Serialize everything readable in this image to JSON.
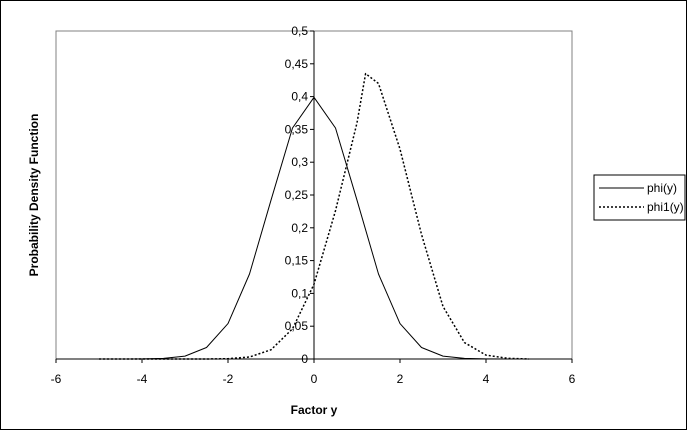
{
  "chart_data": {
    "type": "line",
    "title": "",
    "xlabel": "Factor y",
    "ylabel": "Probability Density Function",
    "xlim": [
      -6,
      6
    ],
    "ylim": [
      0,
      0.5
    ],
    "x_ticks": [
      "-6",
      "-4",
      "-2",
      "0",
      "2",
      "4",
      "6"
    ],
    "y_ticks": [
      "0",
      "0,05",
      "0,1",
      "0,15",
      "0,2",
      "0,25",
      "0,3",
      "0,35",
      "0,4",
      "0,45",
      "0,5"
    ],
    "grid": false,
    "legend_position": "right",
    "series": [
      {
        "name": "phi(y)",
        "style": "solid",
        "color": "#000000",
        "x": [
          -5.0,
          -4.5,
          -4.0,
          -3.5,
          -3.0,
          -2.5,
          -2.0,
          -1.5,
          -1.0,
          -0.5,
          0.0,
          0.5,
          1.0,
          1.5,
          2.0,
          2.5,
          3.0,
          3.5,
          4.0,
          4.5,
          5.0
        ],
        "y": [
          0.0,
          0.0,
          0.0001,
          0.0009,
          0.0044,
          0.0175,
          0.054,
          0.1295,
          0.242,
          0.3521,
          0.3989,
          0.3521,
          0.242,
          0.1295,
          0.054,
          0.0175,
          0.0044,
          0.0009,
          0.0001,
          0.0,
          0.0
        ]
      },
      {
        "name": "phi1(y)",
        "style": "dotted",
        "color": "#000000",
        "x": [
          -5.0,
          -4.5,
          -4.0,
          -3.5,
          -3.0,
          -2.5,
          -2.0,
          -1.5,
          -1.0,
          -0.5,
          0.0,
          0.5,
          1.0,
          1.2,
          1.5,
          2.0,
          2.5,
          3.0,
          3.5,
          4.0,
          4.5,
          5.0
        ],
        "y": [
          0.0,
          0.0,
          0.0,
          0.0,
          0.0,
          0.0,
          0.0005,
          0.003,
          0.014,
          0.046,
          0.114,
          0.226,
          0.36,
          0.435,
          0.42,
          0.32,
          0.19,
          0.08,
          0.025,
          0.006,
          0.001,
          0.0
        ]
      }
    ]
  }
}
